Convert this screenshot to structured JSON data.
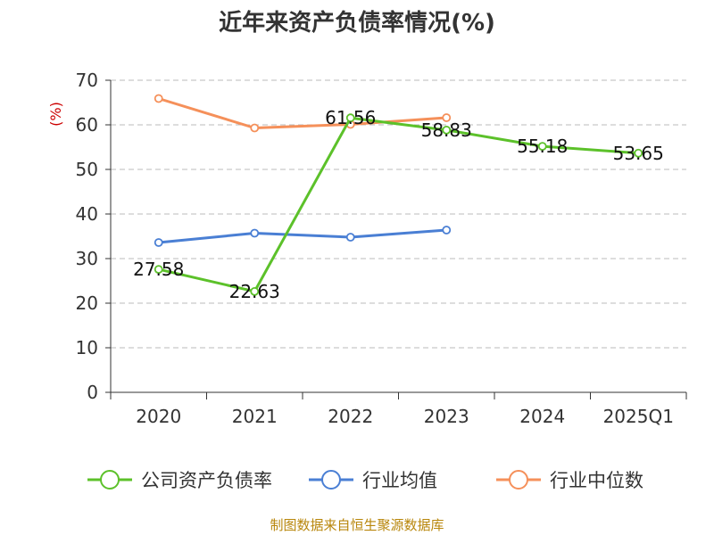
{
  "chart_data": {
    "type": "line",
    "title": "近年来资产负债率情况(%)",
    "ylabel": "(%)",
    "xlabel": "",
    "ylim": [
      0,
      70
    ],
    "yticks": [
      0,
      10,
      20,
      30,
      40,
      50,
      60,
      70
    ],
    "categories": [
      "2020",
      "2021",
      "2022",
      "2023",
      "2024",
      "2025Q1"
    ],
    "grid": true,
    "legend_position": "bottom",
    "series": [
      {
        "name": "公司资产负债率",
        "color": "#5cc12a",
        "values": [
          27.58,
          22.63,
          61.56,
          58.83,
          55.18,
          53.65
        ],
        "labels": [
          "27.58",
          "22.63",
          "61.56",
          "58.83",
          "55.18",
          "53.65"
        ]
      },
      {
        "name": "行业均值",
        "color": "#4a7fd4",
        "values": [
          33.6,
          35.7,
          34.8,
          36.4,
          null,
          null
        ]
      },
      {
        "name": "行业中位数",
        "color": "#f5905a",
        "values": [
          65.9,
          59.3,
          60.1,
          61.6,
          null,
          null
        ]
      }
    ],
    "source": "制图数据来自恒生聚源数据库"
  }
}
